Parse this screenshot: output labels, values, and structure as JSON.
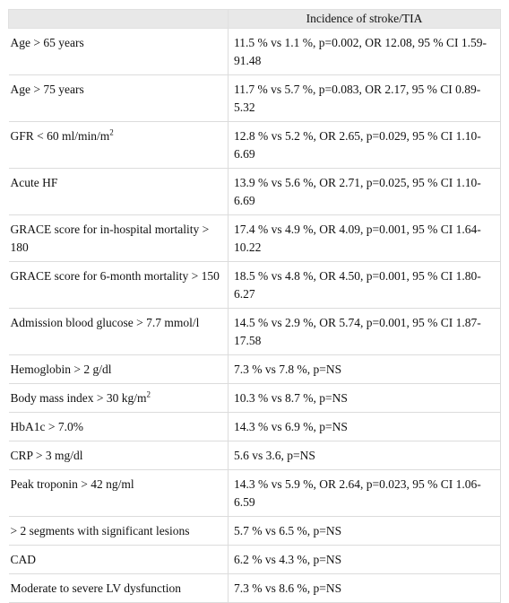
{
  "table": {
    "header": [
      "",
      "Incidence of stroke/TIA"
    ],
    "rows": [
      {
        "label": "Age > 65 years",
        "sup": "",
        "value": "11.5 % vs 1.1 %, p=0.002, OR 12.08, 95 % CI 1.59-91.48"
      },
      {
        "label": "Age > 75 years",
        "sup": "",
        "value": "11.7 % vs 5.7 %, p=0.083, OR 2.17, 95 % CI 0.89-5.32"
      },
      {
        "label": "GFR < 60 ml/min/m",
        "sup": "2",
        "value": "12.8 % vs 5.2 %, OR 2.65, p=0.029, 95 % CI 1.10-6.69"
      },
      {
        "label": "Acute HF",
        "sup": "",
        "value": "13.9 % vs 5.6 %, OR 2.71, p=0.025, 95 % CI 1.10-6.69"
      },
      {
        "label": "GRACE score for in-hospital mortality > 180",
        "sup": "",
        "value": "17.4 % vs 4.9 %, OR 4.09, p=0.001, 95 % CI 1.64-10.22"
      },
      {
        "label": "GRACE score for 6-month mortality > 150",
        "sup": "",
        "value": "18.5 % vs 4.8 %, OR 4.50, p=0.001, 95 % CI 1.80-6.27"
      },
      {
        "label": "Admission blood glucose > 7.7 mmol/l",
        "sup": "",
        "value": "14.5 % vs 2.9 %, OR 5.74, p=0.001, 95 % CI 1.87-17.58"
      },
      {
        "label": "Hemoglobin > 2 g/dl",
        "sup": "",
        "value": "7.3 % vs 7.8 %, p=NS"
      },
      {
        "label": "Body mass index > 30 kg/m",
        "sup": "2",
        "value": "10.3 % vs 8.7 %, p=NS"
      },
      {
        "label": "HbA1c > 7.0%",
        "sup": "",
        "value": "14.3 % vs 6.9 %, p=NS"
      },
      {
        "label": "CRP > 3 mg/dl",
        "sup": "",
        "value": "5.6 vs 3.6, p=NS"
      },
      {
        "label": "Peak troponin > 42 ng/ml",
        "sup": "",
        "value": "14.3 % vs 5.9 %, OR 2.64, p=0.023, 95 % CI 1.06-6.59"
      },
      {
        "label": "> 2 segments with significant lesions",
        "sup": "",
        "value": "5.7 % vs 6.5 %, p=NS"
      },
      {
        "label": "CAD",
        "sup": "",
        "value": "6.2 % vs 4.3 %, p=NS"
      },
      {
        "label": "Moderate to severe LV dysfunction",
        "sup": "",
        "value": "7.3 % vs 8.6 %, p=NS"
      }
    ]
  }
}
